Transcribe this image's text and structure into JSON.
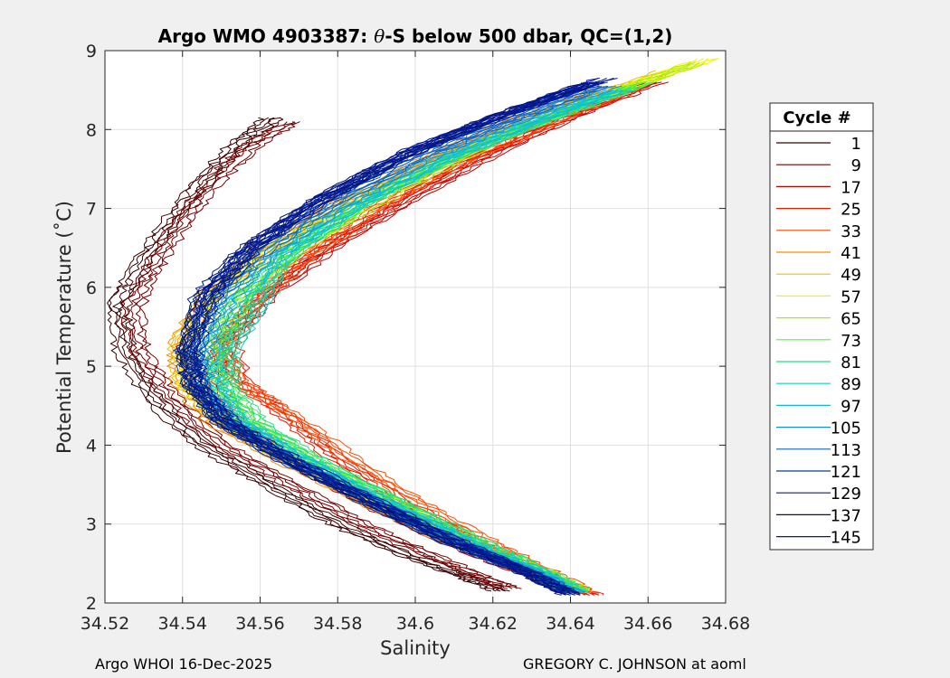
{
  "chart_data": {
    "type": "line",
    "title_prefix": "Argo WMO 4903387: ",
    "title_theta": "θ",
    "title_suffix": "-S below 500 dbar,  QC=(1,2)",
    "xlabel": "Salinity",
    "ylabel": "Potential Temperature (˚C)",
    "xlim": [
      34.52,
      34.68
    ],
    "ylim": [
      2,
      9
    ],
    "xticks": [
      34.52,
      34.54,
      34.56,
      34.58,
      34.6,
      34.62,
      34.64,
      34.66,
      34.68
    ],
    "xtick_labels": [
      "34.52",
      "34.54",
      "34.56",
      "34.58",
      "34.6",
      "34.62",
      "34.64",
      "34.66",
      "34.68"
    ],
    "yticks": [
      2,
      3,
      4,
      5,
      6,
      7,
      8,
      9
    ],
    "ytick_labels": [
      "2",
      "3",
      "4",
      "5",
      "6",
      "7",
      "8",
      "9"
    ],
    "grid": true,
    "legend_title": "Cycle #",
    "legend_position": "right-outside",
    "series": [
      {
        "name": "1",
        "color": "#3a0000",
        "salinity": [
          34.563,
          34.555,
          34.546,
          34.538,
          34.53,
          34.523,
          34.525,
          34.532,
          34.545,
          34.562,
          34.58,
          34.598,
          34.612,
          34.622
        ],
        "theta": [
          8.15,
          7.85,
          7.4,
          6.9,
          6.35,
          5.8,
          5.2,
          4.6,
          4.0,
          3.5,
          3.0,
          2.6,
          2.35,
          2.15
        ]
      },
      {
        "name": "9",
        "color": "#780000",
        "salinity": [
          34.568,
          34.558,
          34.548,
          34.54,
          34.533,
          34.527,
          34.529,
          34.537,
          34.55,
          34.568,
          34.586,
          34.604,
          34.616,
          34.625
        ],
        "theta": [
          8.1,
          7.8,
          7.35,
          6.85,
          6.3,
          5.75,
          5.15,
          4.6,
          4.0,
          3.5,
          3.0,
          2.6,
          2.35,
          2.18
        ]
      },
      {
        "name": "17",
        "color": "#c00000",
        "salinity": [
          34.662,
          34.642,
          34.62,
          34.598,
          34.578,
          34.562,
          34.551,
          34.548,
          34.553,
          34.568,
          34.59,
          34.612,
          34.63,
          34.645
        ],
        "theta": [
          8.6,
          8.2,
          7.7,
          7.1,
          6.5,
          5.9,
          5.3,
          4.8,
          4.3,
          3.8,
          3.2,
          2.7,
          2.35,
          2.1
        ]
      },
      {
        "name": "25",
        "color": "#ee1800",
        "salinity": [
          34.658,
          34.638,
          34.616,
          34.594,
          34.575,
          34.56,
          34.552,
          34.555,
          34.566,
          34.578,
          34.596,
          34.616,
          34.633,
          34.646
        ],
        "theta": [
          8.55,
          8.15,
          7.65,
          7.05,
          6.45,
          5.85,
          5.3,
          4.8,
          4.4,
          3.9,
          3.3,
          2.75,
          2.35,
          2.1
        ]
      },
      {
        "name": "33",
        "color": "#ff4a00",
        "salinity": [
          34.655,
          34.635,
          34.612,
          34.59,
          34.572,
          34.558,
          34.55,
          34.553,
          34.566,
          34.58,
          34.598,
          34.618,
          34.634,
          34.645
        ],
        "theta": [
          8.5,
          8.1,
          7.6,
          7.0,
          6.4,
          5.8,
          5.3,
          4.85,
          4.45,
          3.95,
          3.35,
          2.8,
          2.4,
          2.12
        ]
      },
      {
        "name": "41",
        "color": "#ff8a00",
        "salinity": [
          34.65,
          34.628,
          34.604,
          34.58,
          34.56,
          34.546,
          34.539,
          34.54,
          34.548,
          34.566,
          34.588,
          34.61,
          34.628,
          34.642
        ],
        "theta": [
          8.55,
          8.15,
          7.65,
          7.05,
          6.45,
          5.85,
          5.25,
          4.75,
          4.3,
          3.8,
          3.25,
          2.75,
          2.4,
          2.15
        ]
      },
      {
        "name": "49",
        "color": "#e8c000",
        "salinity": [
          34.665,
          34.64,
          34.612,
          34.586,
          34.563,
          34.547,
          34.539,
          34.541,
          34.55,
          34.568,
          34.59,
          34.612,
          34.63,
          34.642
        ],
        "theta": [
          8.75,
          8.3,
          7.75,
          7.15,
          6.5,
          5.9,
          5.25,
          4.75,
          4.3,
          3.8,
          3.25,
          2.75,
          2.4,
          2.15
        ]
      },
      {
        "name": "57",
        "color": "#f4f400",
        "salinity": [
          34.676,
          34.65,
          34.62,
          34.592,
          34.567,
          34.55,
          34.541,
          34.542,
          34.551,
          34.569,
          34.591,
          34.613,
          34.631,
          34.642
        ],
        "theta": [
          8.9,
          8.45,
          7.9,
          7.25,
          6.6,
          5.95,
          5.3,
          4.75,
          4.3,
          3.8,
          3.25,
          2.75,
          2.4,
          2.15
        ]
      },
      {
        "name": "65",
        "color": "#a8f000",
        "salinity": [
          34.673,
          34.648,
          34.62,
          34.594,
          34.572,
          34.556,
          34.548,
          34.548,
          34.556,
          34.573,
          34.595,
          34.616,
          34.633,
          34.643
        ],
        "theta": [
          8.85,
          8.4,
          7.85,
          7.2,
          6.55,
          5.9,
          5.3,
          4.8,
          4.3,
          3.8,
          3.25,
          2.75,
          2.4,
          2.15
        ]
      },
      {
        "name": "73",
        "color": "#55f040",
        "salinity": [
          34.66,
          34.638,
          34.612,
          34.588,
          34.568,
          34.555,
          34.549,
          34.55,
          34.558,
          34.574,
          34.596,
          34.617,
          34.633,
          34.643
        ],
        "theta": [
          8.6,
          8.2,
          7.7,
          7.1,
          6.45,
          5.85,
          5.25,
          4.8,
          4.3,
          3.8,
          3.25,
          2.75,
          2.4,
          2.15
        ]
      },
      {
        "name": "81",
        "color": "#20e080",
        "salinity": [
          34.656,
          34.634,
          34.609,
          34.586,
          34.568,
          34.558,
          34.552,
          34.552,
          34.559,
          34.575,
          34.597,
          34.618,
          34.633,
          34.643
        ],
        "theta": [
          8.55,
          8.15,
          7.65,
          7.05,
          6.45,
          5.8,
          5.2,
          4.75,
          4.3,
          3.8,
          3.25,
          2.75,
          2.4,
          2.13
        ]
      },
      {
        "name": "89",
        "color": "#10d0c0",
        "salinity": [
          34.654,
          34.632,
          34.607,
          34.584,
          34.566,
          34.56,
          34.552,
          34.549,
          34.555,
          34.572,
          34.594,
          34.615,
          34.632,
          34.642
        ],
        "theta": [
          8.5,
          8.1,
          7.6,
          7.0,
          6.4,
          5.75,
          5.2,
          4.75,
          4.3,
          3.8,
          3.25,
          2.75,
          2.4,
          2.13
        ]
      },
      {
        "name": "97",
        "color": "#10b8e0",
        "salinity": [
          34.652,
          34.63,
          34.606,
          34.583,
          34.565,
          34.553,
          34.547,
          34.547,
          34.554,
          34.571,
          34.593,
          34.614,
          34.631,
          34.641
        ],
        "theta": [
          8.5,
          8.1,
          7.6,
          7.0,
          6.4,
          5.8,
          5.2,
          4.75,
          4.3,
          3.8,
          3.25,
          2.75,
          2.4,
          2.13
        ]
      },
      {
        "name": "105",
        "color": "#1890d0",
        "salinity": [
          34.65,
          34.628,
          34.604,
          34.581,
          34.563,
          34.551,
          34.545,
          34.545,
          34.552,
          34.569,
          34.591,
          34.612,
          34.63,
          34.641
        ],
        "theta": [
          8.55,
          8.15,
          7.65,
          7.05,
          6.45,
          5.85,
          5.2,
          4.75,
          4.3,
          3.8,
          3.25,
          2.75,
          2.4,
          2.12
        ]
      },
      {
        "name": "113",
        "color": "#1060c0",
        "salinity": [
          34.648,
          34.626,
          34.601,
          34.578,
          34.56,
          34.548,
          34.543,
          34.544,
          34.551,
          34.568,
          34.59,
          34.611,
          34.629,
          34.64
        ],
        "theta": [
          8.55,
          8.15,
          7.65,
          7.05,
          6.45,
          5.85,
          5.2,
          4.75,
          4.3,
          3.8,
          3.25,
          2.75,
          2.4,
          2.12
        ]
      },
      {
        "name": "121",
        "color": "#0a3aa0",
        "salinity": [
          34.647,
          34.624,
          34.599,
          34.576,
          34.558,
          34.546,
          34.541,
          34.543,
          34.55,
          34.567,
          34.589,
          34.61,
          34.628,
          34.64
        ],
        "theta": [
          8.6,
          8.2,
          7.7,
          7.1,
          6.5,
          5.9,
          5.2,
          4.75,
          4.3,
          3.8,
          3.25,
          2.75,
          2.4,
          2.12
        ]
      },
      {
        "name": "129",
        "color": "#062080",
        "salinity": [
          34.646,
          34.623,
          34.598,
          34.575,
          34.557,
          34.545,
          34.541,
          34.543,
          34.55,
          34.567,
          34.589,
          34.61,
          34.628,
          34.64
        ],
        "theta": [
          8.6,
          8.2,
          7.7,
          7.1,
          6.5,
          5.9,
          5.2,
          4.75,
          4.3,
          3.8,
          3.25,
          2.75,
          2.4,
          2.12
        ]
      },
      {
        "name": "137",
        "color": "#0a1060",
        "salinity": [
          34.646,
          34.623,
          34.598,
          34.575,
          34.557,
          34.546,
          34.541,
          34.543,
          34.551,
          34.568,
          34.59,
          34.611,
          34.628,
          34.64
        ],
        "theta": [
          8.6,
          8.2,
          7.7,
          7.1,
          6.5,
          5.9,
          5.2,
          4.75,
          4.3,
          3.8,
          3.25,
          2.75,
          2.4,
          2.1
        ]
      },
      {
        "name": "145",
        "color": "#0018a8",
        "salinity": [
          34.649,
          34.626,
          34.6,
          34.577,
          34.559,
          34.548,
          34.542,
          34.544,
          34.552,
          34.569,
          34.591,
          34.612,
          34.629,
          34.64
        ],
        "theta": [
          8.65,
          8.25,
          7.75,
          7.15,
          6.55,
          5.95,
          5.2,
          4.75,
          4.3,
          3.8,
          3.25,
          2.75,
          2.4,
          2.1
        ]
      }
    ]
  },
  "footer": {
    "left": "Argo WHOI 16-Dec-2025",
    "right": "GREGORY C. JOHNSON at aoml"
  }
}
